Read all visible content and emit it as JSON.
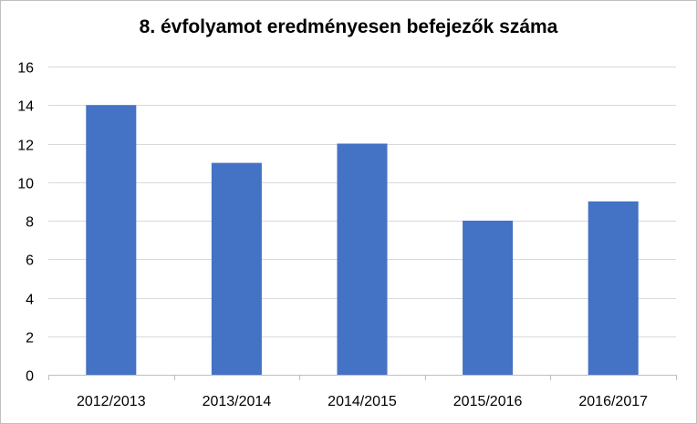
{
  "chart_data": {
    "type": "bar",
    "title": "8. évfolyamot eredményesen befejezők száma",
    "categories": [
      "2012/2013",
      "2013/2014",
      "2014/2015",
      "2015/2016",
      "2016/2017"
    ],
    "values": [
      14,
      11,
      12,
      8,
      9
    ],
    "ylim": [
      0,
      16
    ],
    "yticks": [
      0,
      2,
      4,
      6,
      8,
      10,
      12,
      14,
      16
    ],
    "grid": true,
    "legend": "none",
    "colors": {
      "bar": "#4472c4",
      "grid": "#d9d9d9",
      "axis": "#bfbfbf",
      "border": "#bfbfbf"
    }
  }
}
